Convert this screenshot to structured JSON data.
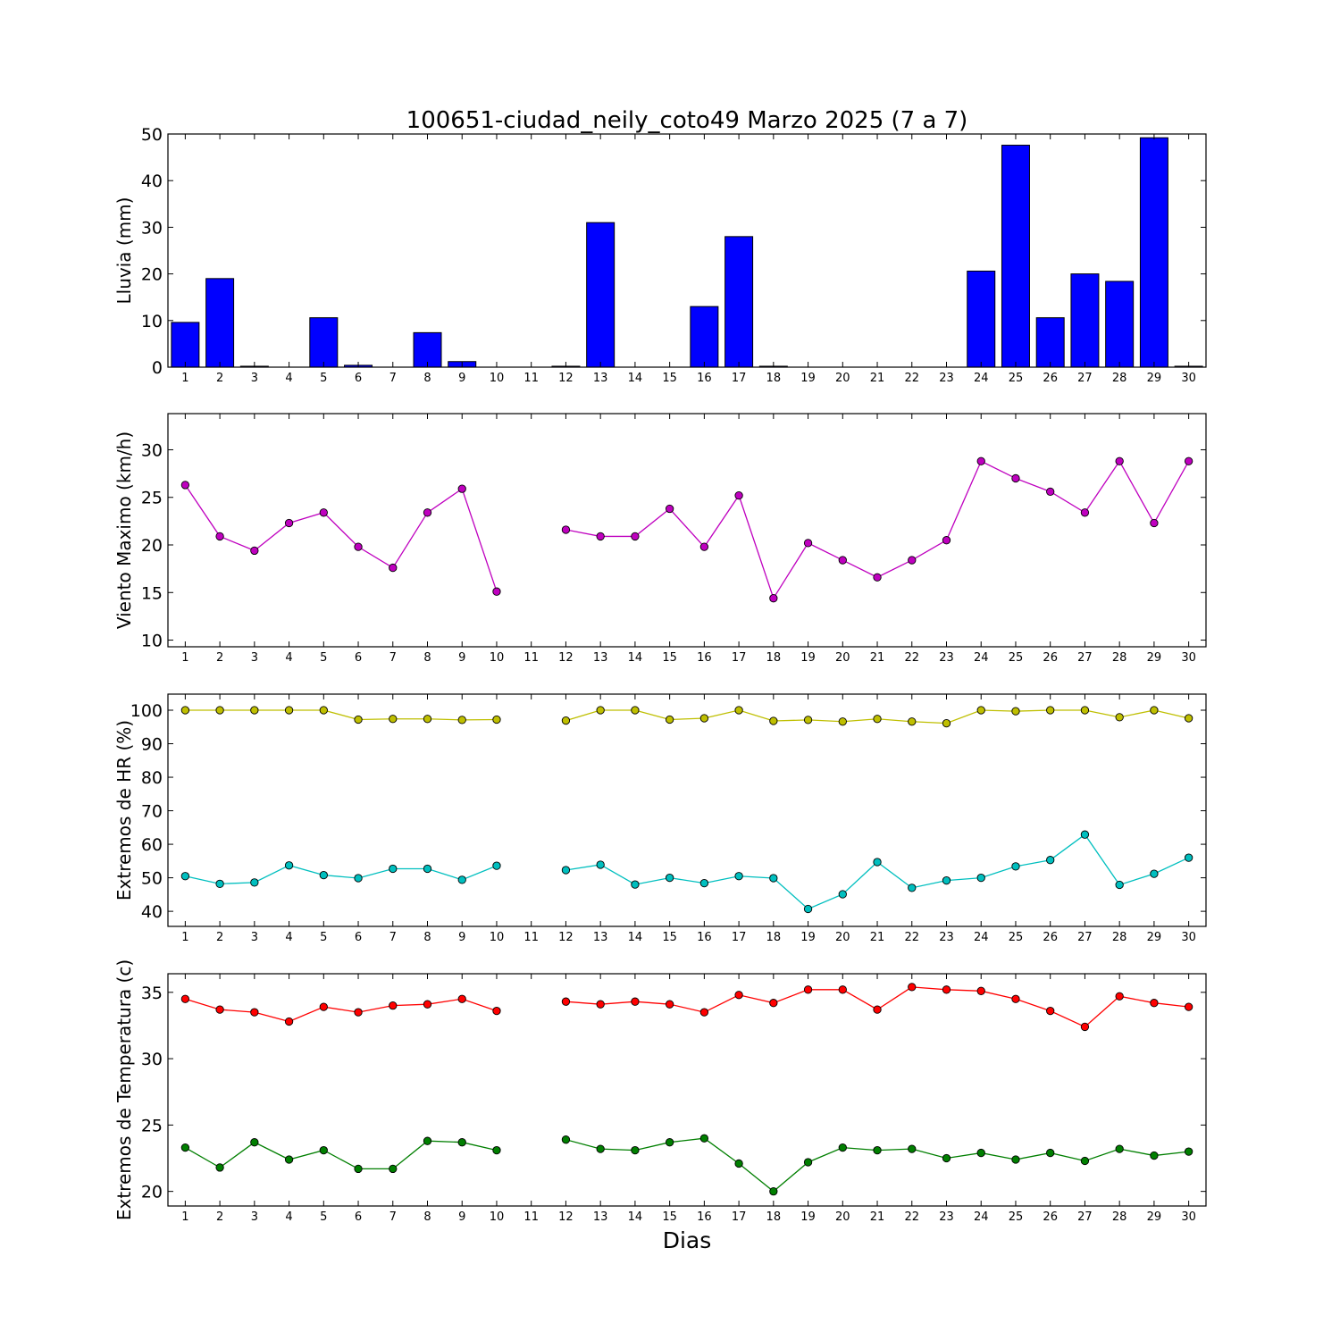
{
  "figure": {
    "title": "100651-ciudad_neily_coto49 Marzo 2025  (7 a 7)",
    "xlabel": "Dias"
  },
  "chart_data": [
    {
      "type": "bar",
      "title": "100651-ciudad_neily_coto49 Marzo 2025  (7 a 7)",
      "ylabel": "Lluvia (mm)",
      "xlabel": "",
      "categories": [
        1,
        2,
        3,
        4,
        5,
        6,
        7,
        8,
        9,
        10,
        11,
        12,
        13,
        14,
        15,
        16,
        17,
        18,
        19,
        20,
        21,
        22,
        23,
        24,
        25,
        26,
        27,
        28,
        29,
        30
      ],
      "xlim": [
        0.5,
        30.5
      ],
      "ylim": [
        0,
        50
      ],
      "yticks": [
        0,
        10,
        20,
        30,
        40,
        50
      ],
      "grid": false,
      "color": "#0000ff",
      "values": [
        9.6,
        19.0,
        0.2,
        0.0,
        10.6,
        0.4,
        0.0,
        7.4,
        1.2,
        0.0,
        0.0,
        0.2,
        31.0,
        0.0,
        0.0,
        13.0,
        28.0,
        0.2,
        0.0,
        0.0,
        0.0,
        0.0,
        0.0,
        20.6,
        47.6,
        10.6,
        20.0,
        18.4,
        49.2,
        0.2
      ]
    },
    {
      "type": "line",
      "ylabel": "Viento Maximo (km/h)",
      "x": [
        1,
        2,
        3,
        4,
        5,
        6,
        7,
        8,
        9,
        10,
        11,
        12,
        13,
        14,
        15,
        16,
        17,
        18,
        19,
        20,
        21,
        22,
        23,
        24,
        25,
        26,
        27,
        28,
        29,
        30
      ],
      "xlim": [
        0.5,
        30.5
      ],
      "ylim": [
        9.3,
        33.8
      ],
      "yticks": [
        10,
        15,
        20,
        25,
        30
      ],
      "grid": false,
      "series": [
        {
          "color": "#bf00bf",
          "values": [
            26.3,
            20.9,
            19.4,
            22.3,
            23.4,
            19.8,
            17.6,
            23.4,
            25.9,
            15.1,
            null,
            21.6,
            20.9,
            20.9,
            23.8,
            19.8,
            25.2,
            14.4,
            20.2,
            18.4,
            16.6,
            18.4,
            20.5,
            28.8,
            27.0,
            25.6,
            23.4,
            28.8,
            22.3,
            28.8
          ]
        }
      ]
    },
    {
      "type": "line",
      "ylabel": "Extremos de HR (%)",
      "x": [
        1,
        2,
        3,
        4,
        5,
        6,
        7,
        8,
        9,
        10,
        11,
        12,
        13,
        14,
        15,
        16,
        17,
        18,
        19,
        20,
        21,
        22,
        23,
        24,
        25,
        26,
        27,
        28,
        29,
        30
      ],
      "xlim": [
        0.5,
        30.5
      ],
      "ylim": [
        35.5,
        104.8
      ],
      "yticks": [
        40,
        50,
        60,
        70,
        80,
        90,
        100
      ],
      "grid": false,
      "series": [
        {
          "color": "#bfbf00",
          "values": [
            100,
            100,
            100,
            100,
            100,
            97.2,
            97.4,
            97.4,
            97.1,
            97.2,
            null,
            96.9,
            100,
            100,
            97.2,
            97.6,
            100,
            96.8,
            97.1,
            96.6,
            97.4,
            96.6,
            96.1,
            100,
            99.7,
            100,
            100,
            97.9,
            100,
            97.6
          ]
        },
        {
          "color": "#00bfbf",
          "values": [
            50.5,
            48.2,
            48.6,
            53.7,
            50.8,
            49.9,
            52.7,
            52.7,
            49.4,
            53.6,
            null,
            52.3,
            53.9,
            48.0,
            50.0,
            48.4,
            50.5,
            49.9,
            40.7,
            45.1,
            54.7,
            47.0,
            49.2,
            50.0,
            53.4,
            55.3,
            62.9,
            47.9,
            51.2,
            56.0
          ]
        }
      ]
    },
    {
      "type": "line",
      "ylabel": "Extremos de Temperatura (c)",
      "x": [
        1,
        2,
        3,
        4,
        5,
        6,
        7,
        8,
        9,
        10,
        11,
        12,
        13,
        14,
        15,
        16,
        17,
        18,
        19,
        20,
        21,
        22,
        23,
        24,
        25,
        26,
        27,
        28,
        29,
        30
      ],
      "xlim": [
        0.5,
        30.5
      ],
      "ylim": [
        18.9,
        36.4
      ],
      "yticks": [
        20,
        25,
        30,
        35
      ],
      "grid": false,
      "series": [
        {
          "color": "#ff0000",
          "values": [
            34.5,
            33.7,
            33.5,
            32.8,
            33.9,
            33.5,
            34.0,
            34.1,
            34.5,
            33.6,
            null,
            34.3,
            34.1,
            34.3,
            34.1,
            33.5,
            34.8,
            34.2,
            35.2,
            35.2,
            33.7,
            35.4,
            35.2,
            35.1,
            34.5,
            33.6,
            32.4,
            34.7,
            34.2,
            33.9
          ]
        },
        {
          "color": "#007f00",
          "values": [
            23.3,
            21.8,
            23.7,
            22.4,
            23.1,
            21.7,
            21.7,
            23.8,
            23.7,
            23.1,
            null,
            23.9,
            23.2,
            23.1,
            23.7,
            24.0,
            22.1,
            20.0,
            22.2,
            23.3,
            23.1,
            23.2,
            22.5,
            22.9,
            22.4,
            22.9,
            22.3,
            23.2,
            22.7,
            23.0
          ]
        }
      ]
    }
  ]
}
